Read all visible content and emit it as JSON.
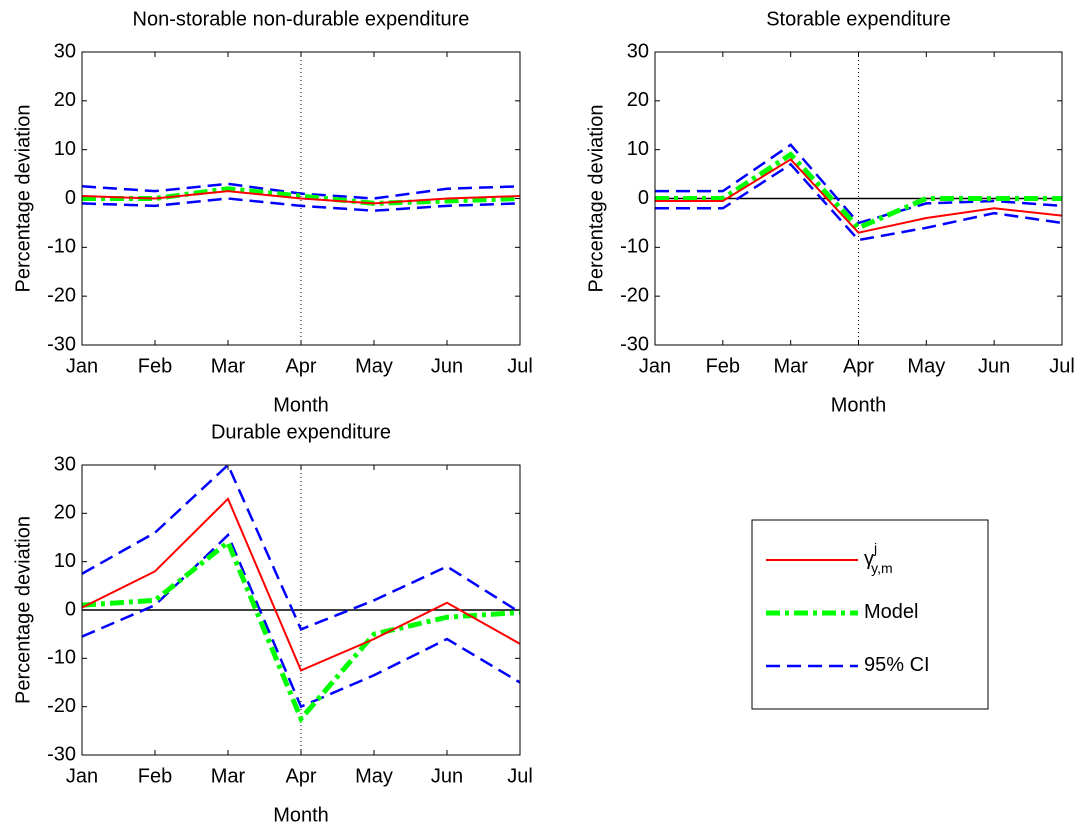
{
  "chart_data": [
    {
      "type": "line",
      "title": "Non-storable non-durable expenditure",
      "xlabel": "Month",
      "ylabel": "Percentage deviation",
      "categories": [
        "Jan",
        "Feb",
        "Mar",
        "Apr",
        "May",
        "Jun",
        "Jul"
      ],
      "ylim": [
        -30,
        30
      ],
      "yticks": [
        -30,
        -20,
        -10,
        0,
        10,
        20,
        30
      ],
      "vline": "Apr",
      "zero_line": false,
      "series": [
        {
          "color": "#ff0000",
          "dash": "solid",
          "values": [
            0.5,
            0,
            1.5,
            0,
            -1,
            0,
            0.5
          ]
        },
        {
          "color": "#00ff00",
          "dash": "dashdot",
          "values": [
            0,
            0,
            2,
            0.5,
            -1,
            -0.5,
            0
          ]
        },
        {
          "color": "#0000ff",
          "dash": "dashed",
          "values": [
            2.5,
            1.5,
            3,
            1,
            0,
            2,
            2.5
          ]
        },
        {
          "color": "#0000ff",
          "dash": "dashed",
          "values": [
            -1,
            -1.5,
            0,
            -1.5,
            -2.5,
            -1.5,
            -1
          ]
        }
      ]
    },
    {
      "type": "line",
      "title": "Storable expenditure",
      "xlabel": "Month",
      "ylabel": "Percentage deviation",
      "categories": [
        "Jan",
        "Feb",
        "Mar",
        "Apr",
        "May",
        "Jun",
        "Jul"
      ],
      "ylim": [
        -30,
        30
      ],
      "yticks": [
        -30,
        -20,
        -10,
        0,
        10,
        20,
        30
      ],
      "vline": "Apr",
      "zero_line": true,
      "series": [
        {
          "color": "#ff0000",
          "dash": "solid",
          "values": [
            -0.5,
            -0.5,
            8,
            -7,
            -4,
            -2,
            -3.5
          ]
        },
        {
          "color": "#00ff00",
          "dash": "dashdot",
          "values": [
            0,
            0,
            9,
            -6,
            0,
            0,
            0
          ]
        },
        {
          "color": "#0000ff",
          "dash": "dashed",
          "values": [
            1.5,
            1.5,
            11,
            -5,
            -1,
            -0.5,
            -1.5
          ]
        },
        {
          "color": "#0000ff",
          "dash": "dashed",
          "values": [
            -2,
            -2,
            7,
            -8.5,
            -6,
            -3,
            -5
          ]
        }
      ]
    },
    {
      "type": "line",
      "title": "Durable expenditure",
      "xlabel": "Month",
      "ylabel": "Percentage deviation",
      "categories": [
        "Jan",
        "Feb",
        "Mar",
        "Apr",
        "May",
        "Jun",
        "Jul"
      ],
      "ylim": [
        -30,
        30
      ],
      "yticks": [
        -30,
        -20,
        -10,
        0,
        10,
        20,
        30
      ],
      "vline": "Apr",
      "zero_line": true,
      "legend": "right",
      "series": [
        {
          "name": "γ",
          "name_superscript": "j",
          "name_subscript": "y,m",
          "color": "#ff0000",
          "dash": "solid",
          "values": [
            0.5,
            8,
            23,
            -12.5,
            -6,
            1.5,
            -7
          ]
        },
        {
          "name": "Model",
          "color": "#00ff00",
          "dash": "dashdot",
          "values": [
            1,
            2,
            14,
            -22.5,
            -5,
            -1.5,
            -0.5
          ]
        },
        {
          "name": "95% CI",
          "color": "#0000ff",
          "dash": "dashed",
          "values": [
            7.5,
            16,
            30,
            -4,
            2,
            9,
            -0.5
          ]
        },
        {
          "name": "95% CI",
          "color": "#0000ff",
          "dash": "dashed",
          "values": [
            -5.5,
            1,
            15.5,
            -20,
            -13.5,
            -6,
            -15
          ]
        }
      ]
    }
  ]
}
